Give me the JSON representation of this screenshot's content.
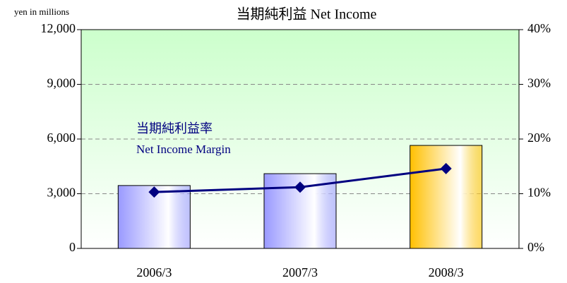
{
  "chart_data": {
    "type": "bar",
    "title": "当期純利益  Net Income",
    "y_label": "yen in millions",
    "annotations": [
      "当期純利益率",
      "Net Income Margin"
    ],
    "categories": [
      "2006/3",
      "2007/3",
      "2008/3"
    ],
    "series": [
      {
        "type": "bar",
        "values": [
          3450,
          4100,
          5650
        ],
        "colors": [
          "#9999ff",
          "#9999ff",
          "#ffc000"
        ]
      },
      {
        "type": "line",
        "axis": "y2",
        "values": [
          10.3,
          11.2,
          14.6
        ],
        "color": "#000080"
      }
    ],
    "ylim": [
      0,
      12000
    ],
    "yticks": [
      0,
      {
        "value": 3000,
        "label": "3,000"
      },
      {
        "value": 6000,
        "label": "6,000"
      },
      {
        "value": 9000,
        "label": "9,000"
      },
      {
        "value": 12000,
        "label": "12,000"
      }
    ],
    "y2lim": [
      0,
      40
    ],
    "y2ticks": [
      {
        "value": 0,
        "label": "0%"
      },
      {
        "value": 10,
        "label": "10%"
      },
      {
        "value": 20,
        "label": "20%"
      },
      {
        "value": 30,
        "label": "30%"
      },
      {
        "value": 40,
        "label": "40%"
      }
    ],
    "grid": true
  }
}
